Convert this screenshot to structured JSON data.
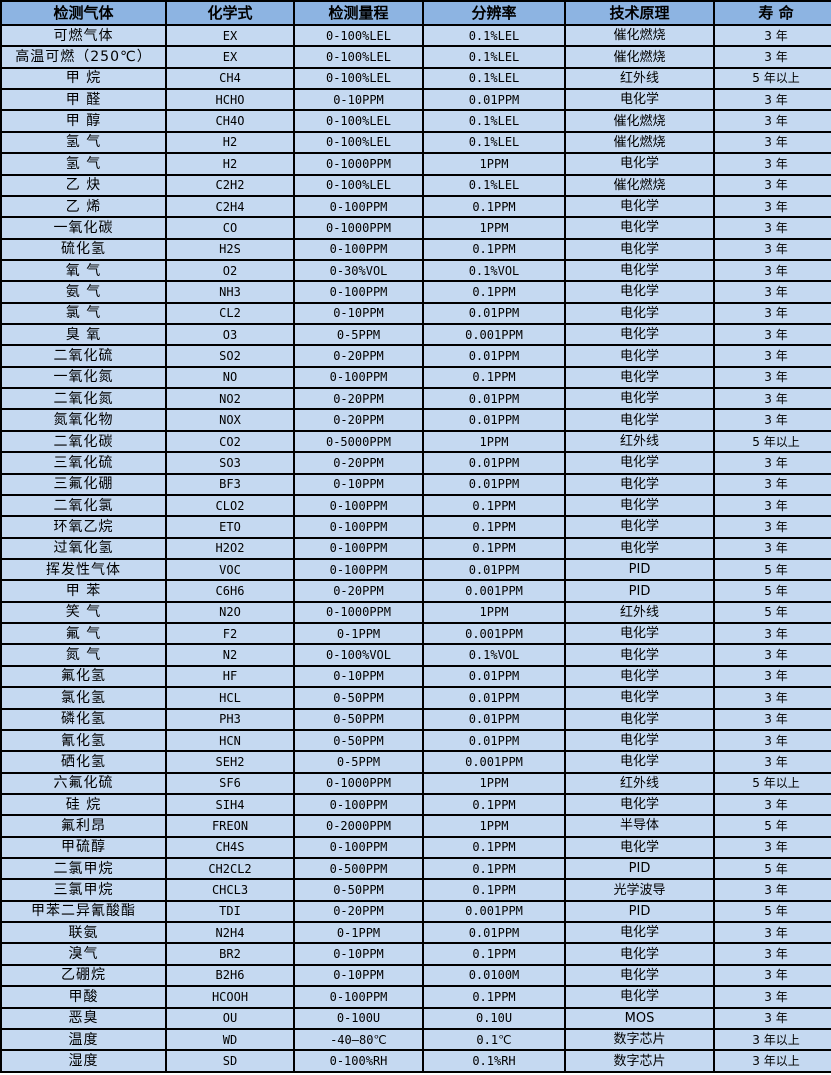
{
  "colors": {
    "header_bg": "#8DB4E2",
    "row_bg": "#C5D9F1",
    "border": "#000000",
    "text": "#000000"
  },
  "table": {
    "headers": [
      "检测气体",
      "化学式",
      "检测量程",
      "分辨率",
      "技术原理",
      "寿 命"
    ],
    "column_keys": [
      "gas_name",
      "formula",
      "range",
      "resolution",
      "principle",
      "lifespan"
    ],
    "rows": [
      [
        "可燃气体",
        "EX",
        "0-100%LEL",
        "0.1%LEL",
        "催化燃烧",
        "3 年"
      ],
      [
        "高温可燃（250℃）",
        "EX",
        "0-100%LEL",
        "0.1%LEL",
        "催化燃烧",
        "3 年"
      ],
      [
        "甲 烷",
        "CH4",
        "0-100%LEL",
        "0.1%LEL",
        "红外线",
        "5 年以上"
      ],
      [
        "甲 醛",
        "HCHO",
        "0-10PPM",
        "0.01PPM",
        "电化学",
        "3 年"
      ],
      [
        "甲 醇",
        "CH4O",
        "0-100%LEL",
        "0.1%LEL",
        "催化燃烧",
        "3 年"
      ],
      [
        "氢 气",
        "H2",
        "0-100%LEL",
        "0.1%LEL",
        "催化燃烧",
        "3 年"
      ],
      [
        "氢 气",
        "H2",
        "0-1000PPM",
        "1PPM",
        "电化学",
        "3 年"
      ],
      [
        "乙 炔",
        "C2H2",
        "0-100%LEL",
        "0.1%LEL",
        "催化燃烧",
        "3 年"
      ],
      [
        "乙 烯",
        "C2H4",
        "0-100PPM",
        "0.1PPM",
        "电化学",
        "3 年"
      ],
      [
        "一氧化碳",
        "CO",
        "0-1000PPM",
        "1PPM",
        "电化学",
        "3 年"
      ],
      [
        "硫化氢",
        "H2S",
        "0-100PPM",
        "0.1PPM",
        "电化学",
        "3 年"
      ],
      [
        "氧 气",
        "O2",
        "0-30%VOL",
        "0.1%VOL",
        "电化学",
        "3 年"
      ],
      [
        "氨 气",
        "NH3",
        "0-100PPM",
        "0.1PPM",
        "电化学",
        "3 年"
      ],
      [
        "氯 气",
        "CL2",
        "0-10PPM",
        "0.01PPM",
        "电化学",
        "3 年"
      ],
      [
        "臭 氧",
        "O3",
        "0-5PPM",
        "0.001PPM",
        "电化学",
        "3 年"
      ],
      [
        "二氧化硫",
        "SO2",
        "0-20PPM",
        "0.01PPM",
        "电化学",
        "3 年"
      ],
      [
        "一氧化氮",
        "NO",
        "0-100PPM",
        "0.1PPM",
        "电化学",
        "3 年"
      ],
      [
        "二氧化氮",
        "NO2",
        "0-20PPM",
        "0.01PPM",
        "电化学",
        "3 年"
      ],
      [
        "氮氧化物",
        "NOX",
        "0-20PPM",
        "0.01PPM",
        "电化学",
        "3 年"
      ],
      [
        "二氧化碳",
        "CO2",
        "0-5000PPM",
        "1PPM",
        "红外线",
        "5 年以上"
      ],
      [
        "三氧化硫",
        "SO3",
        "0-20PPM",
        "0.01PPM",
        "电化学",
        "3 年"
      ],
      [
        "三氟化硼",
        "BF3",
        "0-10PPM",
        "0.01PPM",
        "电化学",
        "3 年"
      ],
      [
        "二氧化氯",
        "CLO2",
        "0-100PPM",
        "0.1PPM",
        "电化学",
        "3 年"
      ],
      [
        "环氧乙烷",
        "ETO",
        "0-100PPM",
        "0.1PPM",
        "电化学",
        "3 年"
      ],
      [
        "过氧化氢",
        "H2O2",
        "0-100PPM",
        "0.1PPM",
        "电化学",
        "3 年"
      ],
      [
        "挥发性气体",
        "VOC",
        "0-100PPM",
        "0.01PPM",
        "PID",
        "5 年"
      ],
      [
        "甲 苯",
        "C6H6",
        "0-20PPM",
        "0.001PPM",
        "PID",
        "5 年"
      ],
      [
        "笑 气",
        "N2O",
        "0-1000PPM",
        "1PPM",
        "红外线",
        "5 年"
      ],
      [
        "氟 气",
        "F2",
        "0-1PPM",
        "0.001PPM",
        "电化学",
        "3 年"
      ],
      [
        "氮 气",
        "N2",
        "0-100%VOL",
        "0.1%VOL",
        "电化学",
        "3 年"
      ],
      [
        "氟化氢",
        "HF",
        "0-10PPM",
        "0.01PPM",
        "电化学",
        "3 年"
      ],
      [
        "氯化氢",
        "HCL",
        "0-50PPM",
        "0.01PPM",
        "电化学",
        "3 年"
      ],
      [
        "磷化氢",
        "PH3",
        "0-50PPM",
        "0.01PPM",
        "电化学",
        "3 年"
      ],
      [
        "氰化氢",
        "HCN",
        "0-50PPM",
        "0.01PPM",
        "电化学",
        "3 年"
      ],
      [
        "硒化氢",
        "SEH2",
        "0-5PPM",
        "0.001PPM",
        "电化学",
        "3 年"
      ],
      [
        "六氟化硫",
        "SF6",
        "0-1000PPM",
        "1PPM",
        "红外线",
        "5 年以上"
      ],
      [
        "硅 烷",
        "SIH4",
        "0-100PPM",
        "0.1PPM",
        "电化学",
        "3 年"
      ],
      [
        "氟利昂",
        "FREON",
        "0-2000PPM",
        "1PPM",
        "半导体",
        "5 年"
      ],
      [
        "甲硫醇",
        "CH4S",
        "0-100PPM",
        "0.1PPM",
        "电化学",
        "3 年"
      ],
      [
        "二氯甲烷",
        "CH2CL2",
        "0-500PPM",
        "0.1PPM",
        "PID",
        "5 年"
      ],
      [
        "三氯甲烷",
        "CHCL3",
        "0-50PPM",
        "0.1PPM",
        "光学波导",
        "3 年"
      ],
      [
        "甲苯二异氰酸酯",
        "TDI",
        "0-20PPM",
        "0.001PPM",
        "PID",
        "5 年"
      ],
      [
        "联氨",
        "N2H4",
        "0-1PPM",
        "0.01PPM",
        "电化学",
        "3 年"
      ],
      [
        "溴气",
        "BR2",
        "0-10PPM",
        "0.1PPM",
        "电化学",
        "3 年"
      ],
      [
        "乙硼烷",
        "B2H6",
        "0-10PPM",
        "0.0100M",
        "电化学",
        "3 年"
      ],
      [
        "甲酸",
        "HCOOH",
        "0-100PPM",
        "0.1PPM",
        "电化学",
        "3 年"
      ],
      [
        "恶臭",
        "OU",
        "0-100U",
        "0.10U",
        "MOS",
        "3 年"
      ],
      [
        "温度",
        "WD",
        "-40—80℃",
        "0.1℃",
        "数字芯片",
        "3 年以上"
      ],
      [
        "湿度",
        "SD",
        "0-100%RH",
        "0.1%RH",
        "数字芯片",
        "3 年以上"
      ]
    ]
  }
}
